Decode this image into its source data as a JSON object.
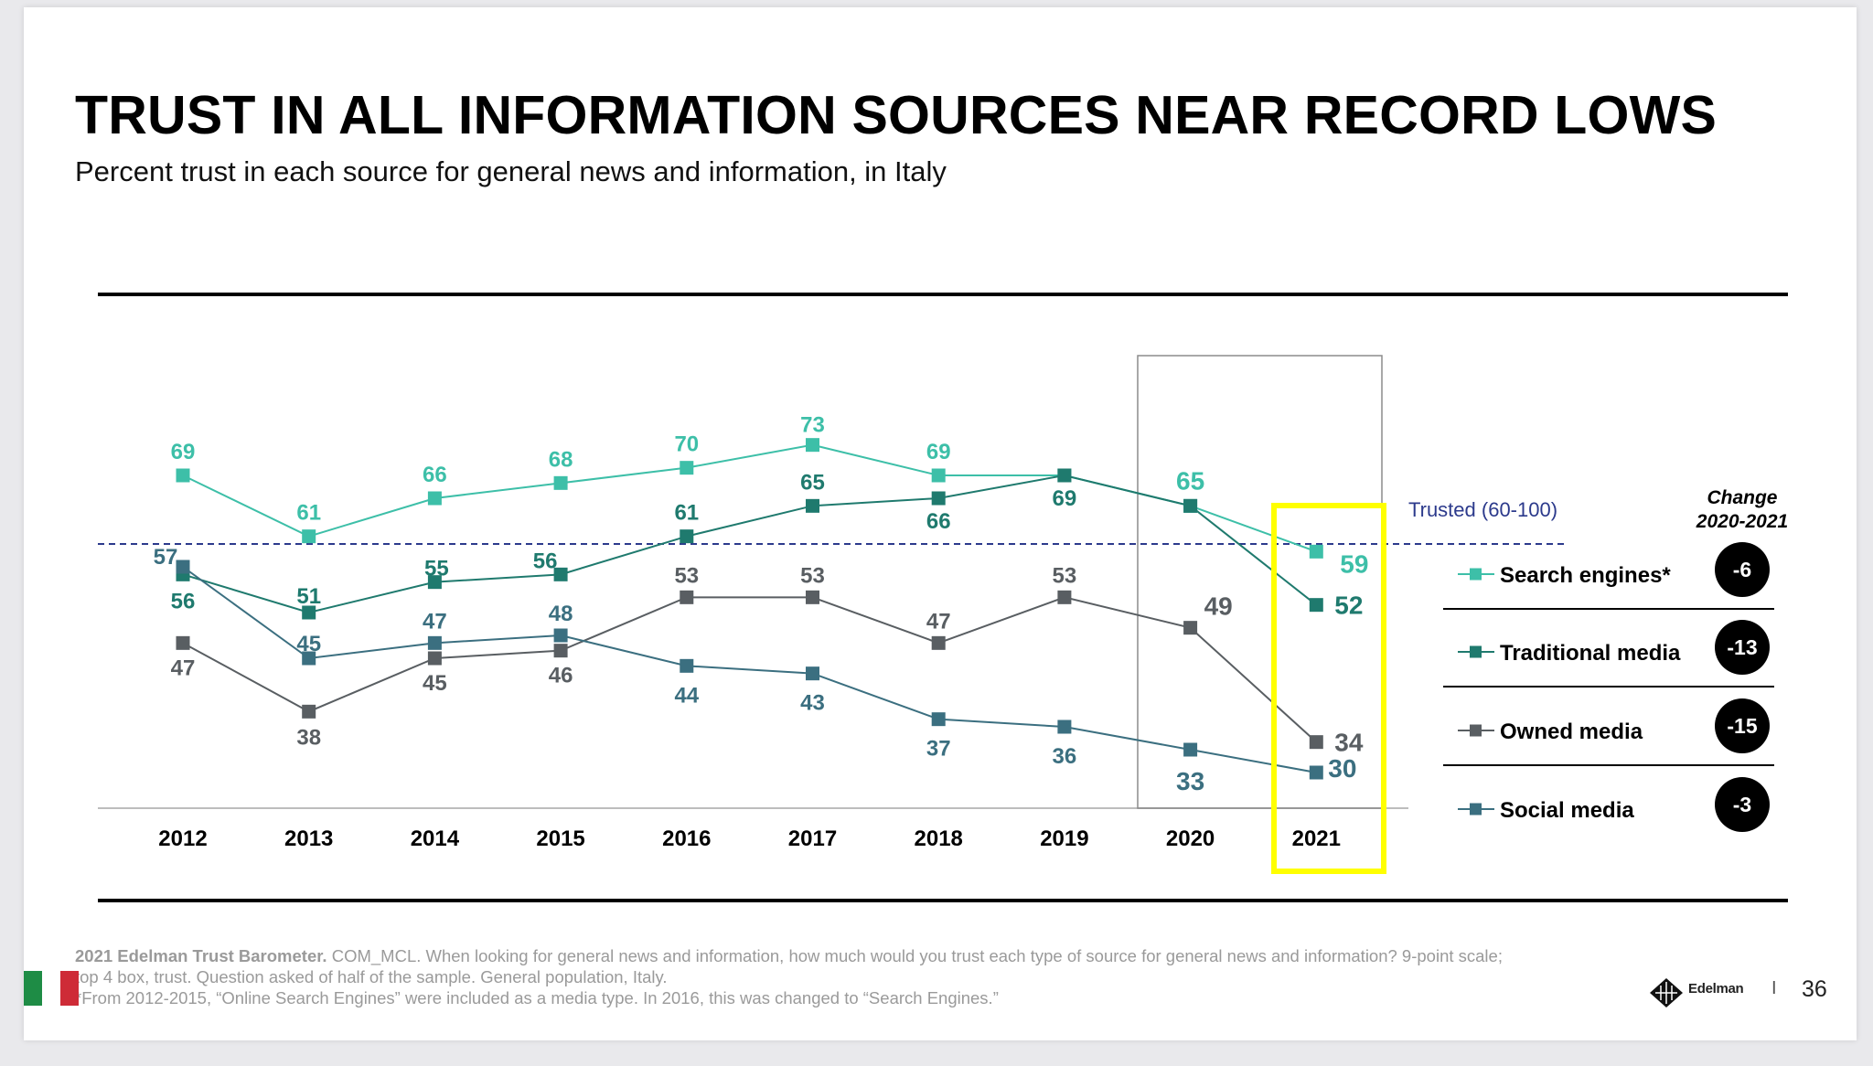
{
  "title": "TRUST IN ALL INFORMATION SOURCES NEAR RECORD LOWS",
  "subtitle": "Percent trust in each source for general news and information, in Italy",
  "chart_data": {
    "type": "line",
    "title": "TRUST IN ALL INFORMATION SOURCES NEAR RECORD LOWS",
    "x": [
      "2012",
      "2013",
      "2014",
      "2015",
      "2016",
      "2017",
      "2018",
      "2019",
      "2020",
      "2021"
    ],
    "ylim": [
      20,
      80
    ],
    "reference_line": {
      "label": "Trusted (60-100)",
      "value": 60
    },
    "series": [
      {
        "name": "Search engines*",
        "color": "#3dbfa8",
        "values": [
          69,
          61,
          66,
          68,
          70,
          73,
          69,
          69,
          65,
          59
        ],
        "labels": [
          "69",
          "61",
          "66",
          "68",
          "70",
          "73",
          "69",
          "",
          "65",
          "59"
        ]
      },
      {
        "name": "Traditional media",
        "color": "#1f7a6e",
        "values": [
          56,
          51,
          55,
          56,
          61,
          65,
          66,
          69,
          65,
          52
        ],
        "labels": [
          "56",
          "51",
          "55",
          "56",
          "61",
          "65",
          "66",
          "69",
          "",
          "52"
        ]
      },
      {
        "name": "Owned media",
        "color": "#595e62",
        "values": [
          47,
          38,
          45,
          46,
          53,
          53,
          47,
          53,
          49,
          34
        ],
        "labels": [
          "47",
          "38",
          "45",
          "46",
          "53",
          "53",
          "47",
          "53",
          "49",
          "34"
        ]
      },
      {
        "name": "Social media",
        "color": "#3b6f80",
        "values": [
          57,
          45,
          47,
          48,
          44,
          43,
          37,
          36,
          33,
          30
        ],
        "labels": [
          "57",
          "45",
          "47",
          "48",
          "44",
          "43",
          "37",
          "36",
          "33",
          "30"
        ]
      }
    ],
    "change_header": [
      "Change",
      "2020-2021"
    ],
    "changes": [
      "-6",
      "-13",
      "-15",
      "-3"
    ],
    "highlight_year": "2021"
  },
  "footnote": {
    "source_bold": "2021 Edelman Trust Barometer.",
    "line1": " COM_MCL. When looking for general news and information, how much would you trust each type of source for general news and information? 9-point scale;",
    "line2": "top 4 box, trust. Question asked of half of the sample. General population, Italy.",
    "line3": "*From 2012-2015, “Online Search Engines” were included as a media type. In 2016, this was changed to “Search Engines.”"
  },
  "logo": "Edelman",
  "page_number": "36",
  "colors": {
    "highlight": "#ffff00",
    "reference": "#2c3a8c",
    "flag": [
      "#1e8c45",
      "#ffffff",
      "#ce2b37"
    ]
  }
}
